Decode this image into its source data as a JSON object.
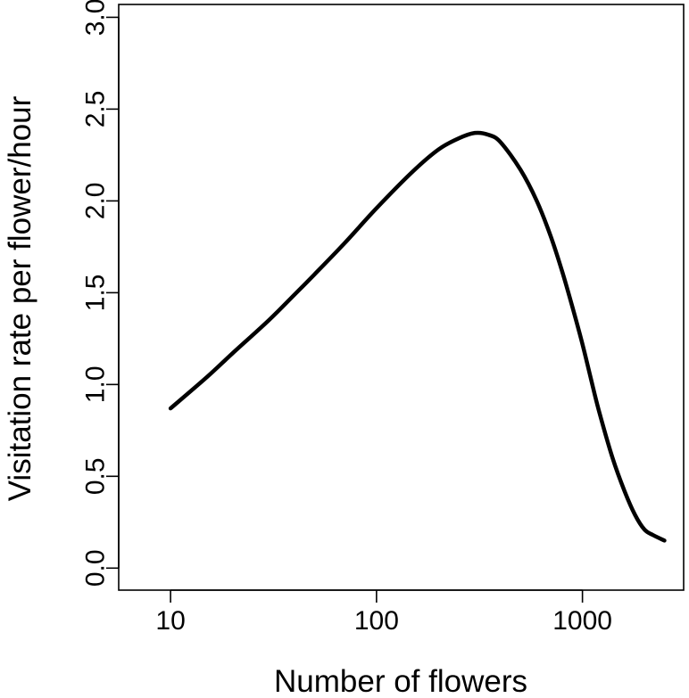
{
  "chart_data": {
    "type": "line",
    "title": "",
    "xlabel": "Number of flowers",
    "ylabel": "Visitation rate per flower/hour",
    "x_scale": "log",
    "xlim": [
      5.6,
      3100
    ],
    "ylim": [
      -0.12,
      3.07
    ],
    "x_ticks": [
      10,
      100,
      1000
    ],
    "x_tick_labels": [
      "10",
      "100",
      "1000"
    ],
    "y_ticks": [
      0,
      0.5,
      1,
      1.5,
      2,
      2.5,
      3
    ],
    "y_tick_labels": [
      "0.0",
      "0.5",
      "1.0",
      "1.5",
      "2.0",
      "2.5",
      "3.0"
    ],
    "grid": false,
    "legend": "none",
    "series": [
      {
        "color": "#000000",
        "x": [
          10,
          15,
          20,
          30,
          40,
          50,
          70,
          100,
          150,
          200,
          250,
          300,
          350,
          400,
          500,
          600,
          700,
          800,
          900,
          1000,
          1100,
          1200,
          1400,
          1600,
          1800,
          2000,
          2200,
          2500
        ],
        "y": [
          0.87,
          1.04,
          1.17,
          1.35,
          1.49,
          1.6,
          1.77,
          1.96,
          2.16,
          2.28,
          2.34,
          2.37,
          2.36,
          2.32,
          2.17,
          2.0,
          1.81,
          1.61,
          1.41,
          1.22,
          1.03,
          0.86,
          0.6,
          0.42,
          0.29,
          0.21,
          0.18,
          0.15
        ]
      }
    ]
  }
}
